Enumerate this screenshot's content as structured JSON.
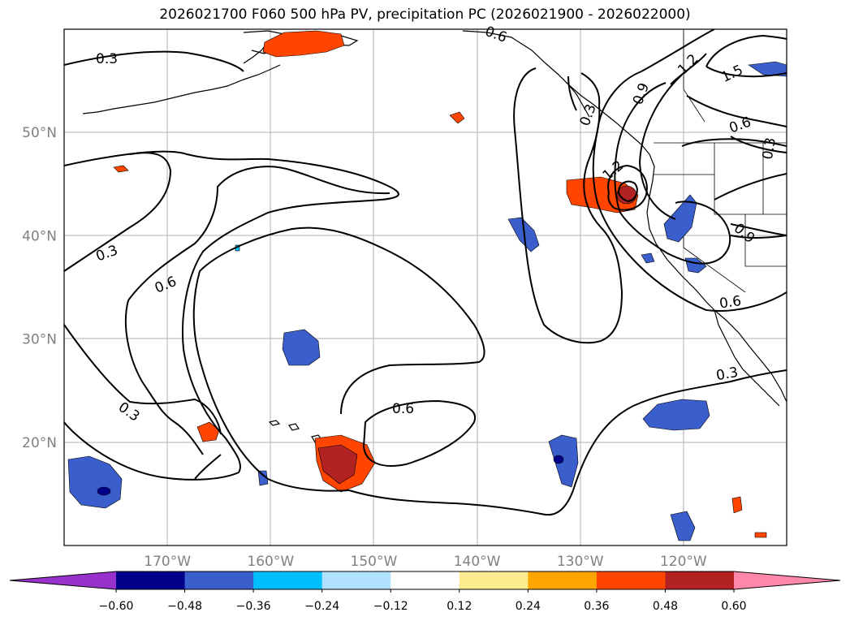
{
  "title": "2026021700 F060 500 hPa PV, precipitation PC (2026021900 - 2026022000)",
  "map": {
    "lon_range": [
      -180,
      -110
    ],
    "lat_range": [
      10,
      60
    ],
    "lon_labels": [
      {
        "lon": -170,
        "text": "170°W"
      },
      {
        "lon": -160,
        "text": "160°W"
      },
      {
        "lon": -150,
        "text": "150°W"
      },
      {
        "lon": -140,
        "text": "140°W"
      },
      {
        "lon": -130,
        "text": "130°W"
      },
      {
        "lon": -120,
        "text": "120°W"
      }
    ],
    "lat_labels": [
      {
        "lat": 50,
        "text": "50°N"
      },
      {
        "lat": 40,
        "text": "40°N"
      },
      {
        "lat": 30,
        "text": "30°N"
      },
      {
        "lat": 20,
        "text": "20°N"
      }
    ],
    "contour_labels": [
      "0.3",
      "0.6",
      "0.9",
      "1.2",
      "1.5"
    ]
  },
  "colorbar": {
    "ticks": [
      "−0.60",
      "−0.48",
      "−0.36",
      "−0.24",
      "−0.12",
      "0.12",
      "0.24",
      "0.36",
      "0.48",
      "0.60"
    ],
    "colors": [
      "#9932cc",
      "#00008b",
      "#3a5fcd",
      "#00bfff",
      "#b0e2ff",
      "#ffffff",
      "#fdeb8f",
      "#ffa500",
      "#ff4500",
      "#b22222",
      "#ff88aa"
    ]
  }
}
